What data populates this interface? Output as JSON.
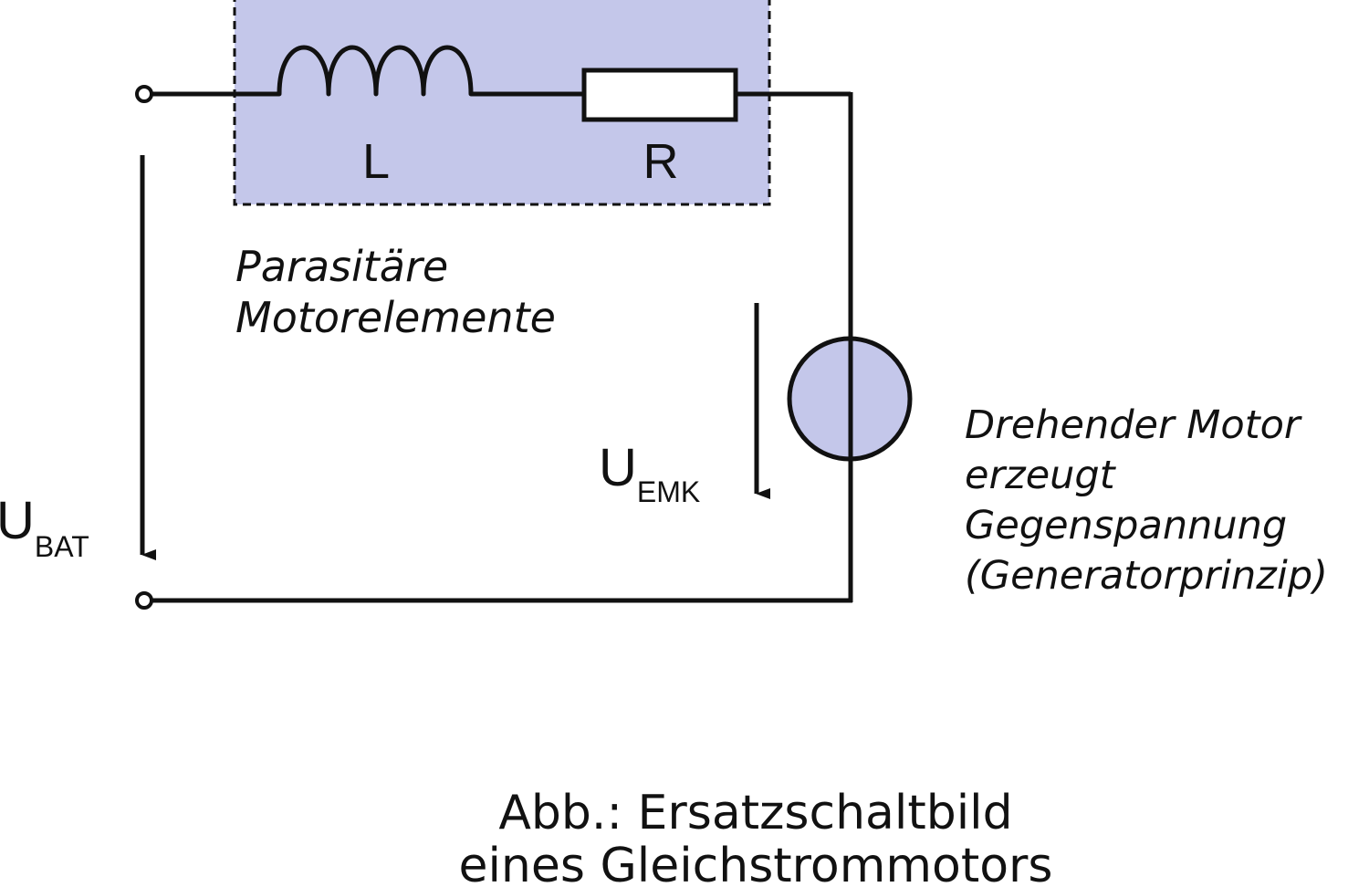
{
  "colors": {
    "wire": "#111111",
    "highlight_fill": "#c4c7ea",
    "background": "#ffffff"
  },
  "components": {
    "inductor_label": "L",
    "resistor_label": "R"
  },
  "parasitic_box": {
    "line1": "Parasitäre",
    "line2": "Motorelemente"
  },
  "voltages": {
    "battery": {
      "main": "U",
      "sub": "BAT"
    },
    "emf": {
      "main": "U",
      "sub": "EMK"
    }
  },
  "motor_note": {
    "line1": "Drehender Motor",
    "line2": "erzeugt",
    "line3": "Gegenspannung",
    "line4": "(Generatorprinzip)"
  },
  "caption": {
    "line1": "Abb.: Ersatzschaltbild",
    "line2": "eines Gleichstrommotors"
  }
}
